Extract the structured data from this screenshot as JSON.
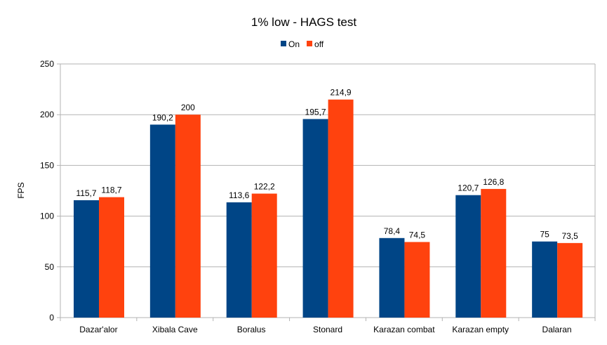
{
  "chart_data": {
    "type": "bar",
    "title": "1% low - HAGS test",
    "xlabel": "",
    "ylabel": "FPS",
    "ylim": [
      0,
      250
    ],
    "yticks": [
      0,
      50,
      100,
      150,
      200,
      250
    ],
    "grid": true,
    "legend_position": "top-center",
    "categories": [
      "Dazar'alor",
      "Xibala Cave",
      "Boralus",
      "Stonard",
      "Karazan combat",
      "Karazan empty",
      "Dalaran"
    ],
    "series": [
      {
        "name": "On",
        "color": "#004586",
        "values": [
          115.7,
          190.2,
          113.6,
          195.7,
          78.4,
          120.7,
          75
        ],
        "labels": [
          "115,7",
          "190,2",
          "113,6",
          "195,7",
          "78,4",
          "120,7",
          "75"
        ]
      },
      {
        "name": "off",
        "color": "#ff420e",
        "values": [
          118.7,
          200,
          122.2,
          214.9,
          74.5,
          126.8,
          73.5
        ],
        "labels": [
          "118,7",
          "200",
          "122,2",
          "214,9",
          "74,5",
          "126,8",
          "73,5"
        ]
      }
    ]
  }
}
